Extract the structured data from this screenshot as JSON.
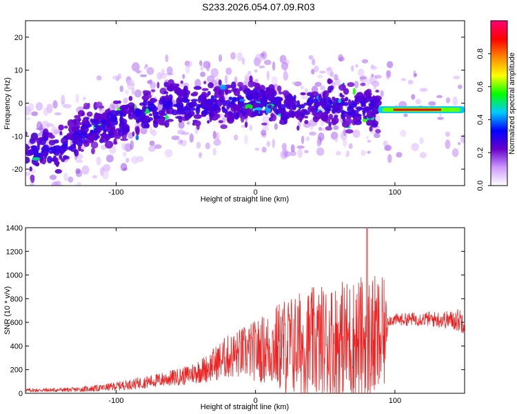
{
  "title": "S233.2026.054.07.09.R03",
  "colors": {
    "trace": "#ee2222",
    "axis": "#000000",
    "colormap": [
      "#ffffff",
      "#cc99ff",
      "#6600cc",
      "#0000ff",
      "#00ccff",
      "#00ff00",
      "#ffff00",
      "#ff8800",
      "#ff0000",
      "#ff0077"
    ]
  },
  "chart_data": [
    {
      "type": "heatmap",
      "name": "spectrogram",
      "xlabel": "Height of straight line (km)",
      "ylabel": "Frequency (Hz)",
      "xlim": [
        -165,
        150
      ],
      "ylim": [
        -25,
        25
      ],
      "xticks": [
        -100,
        0,
        100
      ],
      "yticks": [
        -20,
        -10,
        0,
        10,
        20
      ],
      "xtick_labels": [
        "-100",
        "0",
        "100"
      ],
      "ytick_labels": [
        "-20",
        "-10",
        "0",
        "10",
        "20"
      ],
      "ridge": {
        "x": [
          -160,
          -140,
          -120,
          -100,
          -80,
          -60,
          -40,
          -20,
          0,
          20,
          40,
          60,
          80,
          88
        ],
        "y": [
          -15,
          -14,
          -8,
          -6,
          -3,
          0,
          -1,
          0,
          1,
          -1,
          0,
          -1,
          -1,
          -2
        ]
      },
      "tone": {
        "x_start": 88,
        "x_end": 150,
        "freq": -2
      },
      "colorbar": {
        "label": "Normalized spectral amplitude",
        "range": [
          0.0,
          1.0
        ],
        "ticks": [
          0.0,
          0.2,
          0.4,
          0.6,
          0.8
        ],
        "tick_labels": [
          "0.0",
          "0.2",
          "0.4",
          "0.6",
          "0.8"
        ]
      }
    },
    {
      "type": "line",
      "name": "snr",
      "xlabel": "Height of straight line (km)",
      "ylabel": "SNR (10 * v/v)",
      "xlim": [
        -165,
        150
      ],
      "ylim": [
        0,
        1400
      ],
      "xticks": [
        -100,
        0,
        100
      ],
      "yticks": [
        0,
        200,
        400,
        600,
        800,
        1000,
        1200,
        1400
      ],
      "xtick_labels": [
        "-100",
        "0",
        "100"
      ],
      "ytick_labels": [
        "0",
        "200",
        "400",
        "600",
        "800",
        "1000",
        "1200",
        "1400"
      ],
      "envelope": {
        "x": [
          -165,
          -130,
          -110,
          -90,
          -70,
          -50,
          -35,
          -22,
          -10,
          0,
          10,
          20,
          40,
          60,
          80,
          92,
          95,
          120,
          140,
          150
        ],
        "base": [
          25,
          30,
          45,
          75,
          110,
          150,
          210,
          300,
          340,
          360,
          380,
          400,
          420,
          440,
          450,
          460,
          620,
          630,
          620,
          620
        ],
        "spread": [
          15,
          20,
          30,
          45,
          60,
          80,
          120,
          180,
          220,
          260,
          320,
          420,
          480,
          520,
          560,
          520,
          50,
          60,
          80,
          120
        ]
      },
      "peak": {
        "x": 80,
        "y": 1400
      }
    }
  ]
}
